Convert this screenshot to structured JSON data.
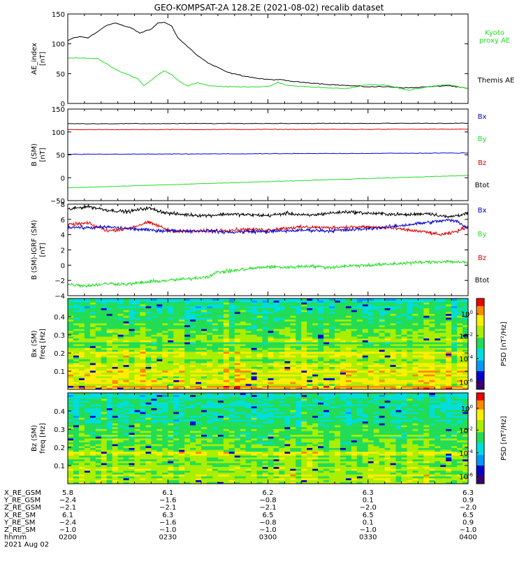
{
  "title": "GEO-KOMPSAT-2A 128.2E (2021-08-02) recalib dataset",
  "colors": {
    "black": "#000000",
    "green": "#22dd22",
    "red": "#dd0000",
    "blue": "#0000cc"
  },
  "chart_data": [
    {
      "type": "line",
      "ylabel": "AE_index [nT]",
      "ylim": [
        0,
        150
      ],
      "yticks": [
        0,
        50,
        100,
        150
      ],
      "x_hours": [
        2.0,
        4.0
      ],
      "legend": [
        {
          "label": "Kyoto proxy AE",
          "color": "#22dd22"
        },
        {
          "label": "Themis AE",
          "color": "#000000"
        }
      ],
      "series": [
        {
          "name": "Themis AE",
          "color": "#000000",
          "x": [
            2.0,
            2.03,
            2.06,
            2.1,
            2.14,
            2.18,
            2.2,
            2.24,
            2.28,
            2.32,
            2.36,
            2.42,
            2.45,
            2.48,
            2.52,
            2.55,
            2.6,
            2.65,
            2.7,
            2.75,
            2.8,
            2.85,
            2.9,
            2.95,
            3.0,
            3.05,
            3.1,
            3.15,
            3.2,
            3.3,
            3.4,
            3.5,
            3.6,
            3.7,
            3.8,
            3.9,
            4.0
          ],
          "y": [
            105,
            110,
            112,
            110,
            118,
            128,
            132,
            135,
            130,
            126,
            118,
            125,
            135,
            136,
            130,
            110,
            95,
            80,
            68,
            60,
            52,
            48,
            45,
            42,
            40,
            40,
            38,
            36,
            35,
            32,
            30,
            28,
            28,
            26,
            28,
            30,
            25
          ]
        },
        {
          "name": "Kyoto proxy AE",
          "color": "#22dd22",
          "x": [
            2.0,
            2.1,
            2.15,
            2.2,
            2.25,
            2.3,
            2.35,
            2.38,
            2.42,
            2.45,
            2.48,
            2.52,
            2.56,
            2.6,
            2.65,
            2.7,
            2.8,
            2.9,
            3.0,
            3.05,
            3.1,
            3.2,
            3.3,
            3.4,
            3.5,
            3.6,
            3.7,
            3.8,
            3.9,
            4.0
          ],
          "y": [
            76,
            76,
            75,
            65,
            55,
            48,
            42,
            30,
            40,
            48,
            55,
            48,
            36,
            30,
            35,
            30,
            28,
            28,
            28,
            35,
            30,
            28,
            26,
            25,
            32,
            30,
            22,
            28,
            32,
            25
          ]
        }
      ]
    },
    {
      "type": "line",
      "ylabel": "B (SM) [nT]",
      "ylim": [
        -50,
        150
      ],
      "yticks": [
        -50,
        0,
        50,
        100,
        150
      ],
      "x_hours": [
        2.0,
        4.0
      ],
      "legend": [
        {
          "label": "Bx",
          "color": "#0000cc"
        },
        {
          "label": "By",
          "color": "#22dd22"
        },
        {
          "label": "Bz",
          "color": "#dd0000"
        },
        {
          "label": "Btot",
          "color": "#000000"
        }
      ],
      "series": [
        {
          "name": "Btot",
          "color": "#000000",
          "x": [
            2.0,
            4.0
          ],
          "y": [
            118,
            119
          ]
        },
        {
          "name": "Bz",
          "color": "#dd0000",
          "x": [
            2.0,
            4.0
          ],
          "y": [
            105,
            106
          ]
        },
        {
          "name": "Bx",
          "color": "#0000cc",
          "x": [
            2.0,
            4.0
          ],
          "y": [
            51,
            54
          ]
        },
        {
          "name": "By",
          "color": "#22dd22",
          "x": [
            2.0,
            4.0
          ],
          "y": [
            -22,
            5
          ]
        }
      ]
    },
    {
      "type": "line",
      "ylabel": "B (SM)-IGRF (SM) [nT]",
      "ylim": [
        -4,
        8
      ],
      "yticks": [
        -4,
        -2,
        0,
        2,
        4,
        6,
        8
      ],
      "x_hours": [
        2.0,
        4.0
      ],
      "legend": [
        {
          "label": "Bx",
          "color": "#0000cc"
        },
        {
          "label": "By",
          "color": "#22dd22"
        },
        {
          "label": "Bz",
          "color": "#dd0000"
        },
        {
          "label": "Btot",
          "color": "#000000"
        }
      ],
      "series": [
        {
          "name": "Btot",
          "color": "#000000",
          "x": [
            2.0,
            2.1,
            2.2,
            2.3,
            2.4,
            2.5,
            2.6,
            2.7,
            2.8,
            2.9,
            3.0,
            3.1,
            3.2,
            3.3,
            3.4,
            3.5,
            3.6,
            3.7,
            3.8,
            3.9,
            4.0
          ],
          "y": [
            7.3,
            7.7,
            7.2,
            7.0,
            7.5,
            6.8,
            6.6,
            6.5,
            6.7,
            6.6,
            6.5,
            6.8,
            6.5,
            6.8,
            7.0,
            6.8,
            6.7,
            6.6,
            6.8,
            6.3,
            6.8
          ]
        },
        {
          "name": "Bz",
          "color": "#dd0000",
          "x": [
            2.0,
            2.1,
            2.2,
            2.3,
            2.4,
            2.45,
            2.5,
            2.6,
            2.7,
            2.8,
            2.9,
            3.0,
            3.1,
            3.2,
            3.3,
            3.4,
            3.5,
            3.6,
            3.7,
            3.8,
            3.85,
            3.9,
            3.95,
            4.0
          ],
          "y": [
            5.3,
            5.5,
            4.5,
            4.8,
            5.6,
            5.2,
            4.6,
            4.4,
            4.5,
            4.6,
            4.7,
            4.6,
            4.9,
            5.0,
            4.9,
            5.0,
            5.0,
            4.9,
            4.6,
            4.3,
            4.0,
            4.1,
            4.5,
            5.1
          ]
        },
        {
          "name": "Bx",
          "color": "#0000cc",
          "x": [
            2.0,
            2.1,
            2.2,
            2.3,
            2.4,
            2.5,
            2.6,
            2.7,
            2.8,
            2.9,
            3.0,
            3.1,
            3.2,
            3.3,
            3.4,
            3.5,
            3.6,
            3.7,
            3.8,
            3.9,
            3.95,
            4.0
          ],
          "y": [
            5.0,
            4.9,
            5.0,
            4.8,
            4.6,
            4.5,
            4.5,
            4.5,
            4.3,
            4.4,
            4.4,
            4.5,
            4.6,
            4.5,
            4.6,
            4.8,
            5.0,
            5.3,
            5.6,
            5.9,
            5.7,
            4.8
          ]
        },
        {
          "name": "By",
          "color": "#22dd22",
          "x": [
            2.0,
            2.1,
            2.2,
            2.3,
            2.4,
            2.5,
            2.6,
            2.7,
            2.75,
            2.8,
            2.9,
            3.0,
            3.1,
            3.2,
            3.3,
            3.4,
            3.5,
            3.6,
            3.7,
            3.8,
            3.9,
            4.0
          ],
          "y": [
            -2.5,
            -2.7,
            -2.4,
            -2.5,
            -2.2,
            -2.0,
            -1.8,
            -1.5,
            -0.9,
            -0.8,
            -0.5,
            -0.2,
            -0.3,
            -0.1,
            -0.3,
            -0.1,
            0.0,
            0.1,
            0.3,
            0.4,
            0.5,
            0.3
          ]
        }
      ]
    },
    {
      "type": "heatmap",
      "ylabel": "Bx (SM) freq [Hz]",
      "ylim": [
        0,
        0.5
      ],
      "yticks": [
        0.1,
        0.2,
        0.3,
        0.4
      ],
      "colorbar_label": "PSD [nT²/Hz]",
      "colorbar_ticks": [
        "10^0",
        "10^-2",
        "10^-4",
        "10^-6"
      ],
      "x_hours": [
        2.0,
        4.0
      ]
    },
    {
      "type": "heatmap",
      "ylabel": "Bz (SM) freq [Hz]",
      "ylim": [
        0,
        0.5
      ],
      "yticks": [
        0.1,
        0.2,
        0.3,
        0.4
      ],
      "colorbar_label": "PSD [nT²/Hz]",
      "colorbar_ticks": [
        "10^0",
        "10^-2",
        "10^-4",
        "10^-6"
      ],
      "x_hours": [
        2.0,
        4.0
      ]
    }
  ],
  "x_axis": {
    "rows": [
      {
        "label": "X_RE_GSM",
        "values": [
          "5.8",
          "6.1",
          "6.2",
          "6.3",
          "6.3"
        ]
      },
      {
        "label": "Y_RE_GSM",
        "values": [
          "−2.4",
          "−1.6",
          "−0.8",
          "0.1",
          "0.9"
        ]
      },
      {
        "label": "Z_RE_GSM",
        "values": [
          "−2.1",
          "−2.1",
          "−2.1",
          "−2.0",
          "−2.0"
        ]
      },
      {
        "label": "X_RE_SM",
        "values": [
          "6.1",
          "6.3",
          "6.5",
          "6.5",
          "6.5"
        ]
      },
      {
        "label": "Y_RE_SM",
        "values": [
          "−2.4",
          "−1.6",
          "−0.8",
          "0.1",
          "0.9"
        ]
      },
      {
        "label": "Z_RE_SM",
        "values": [
          "−1.0",
          "−1.0",
          "−1.0",
          "−1.0",
          "−1.0"
        ]
      },
      {
        "label": "hhmm",
        "values": [
          "0200",
          "0230",
          "0300",
          "0330",
          "0400"
        ]
      }
    ],
    "date": "2021 Aug 02"
  }
}
